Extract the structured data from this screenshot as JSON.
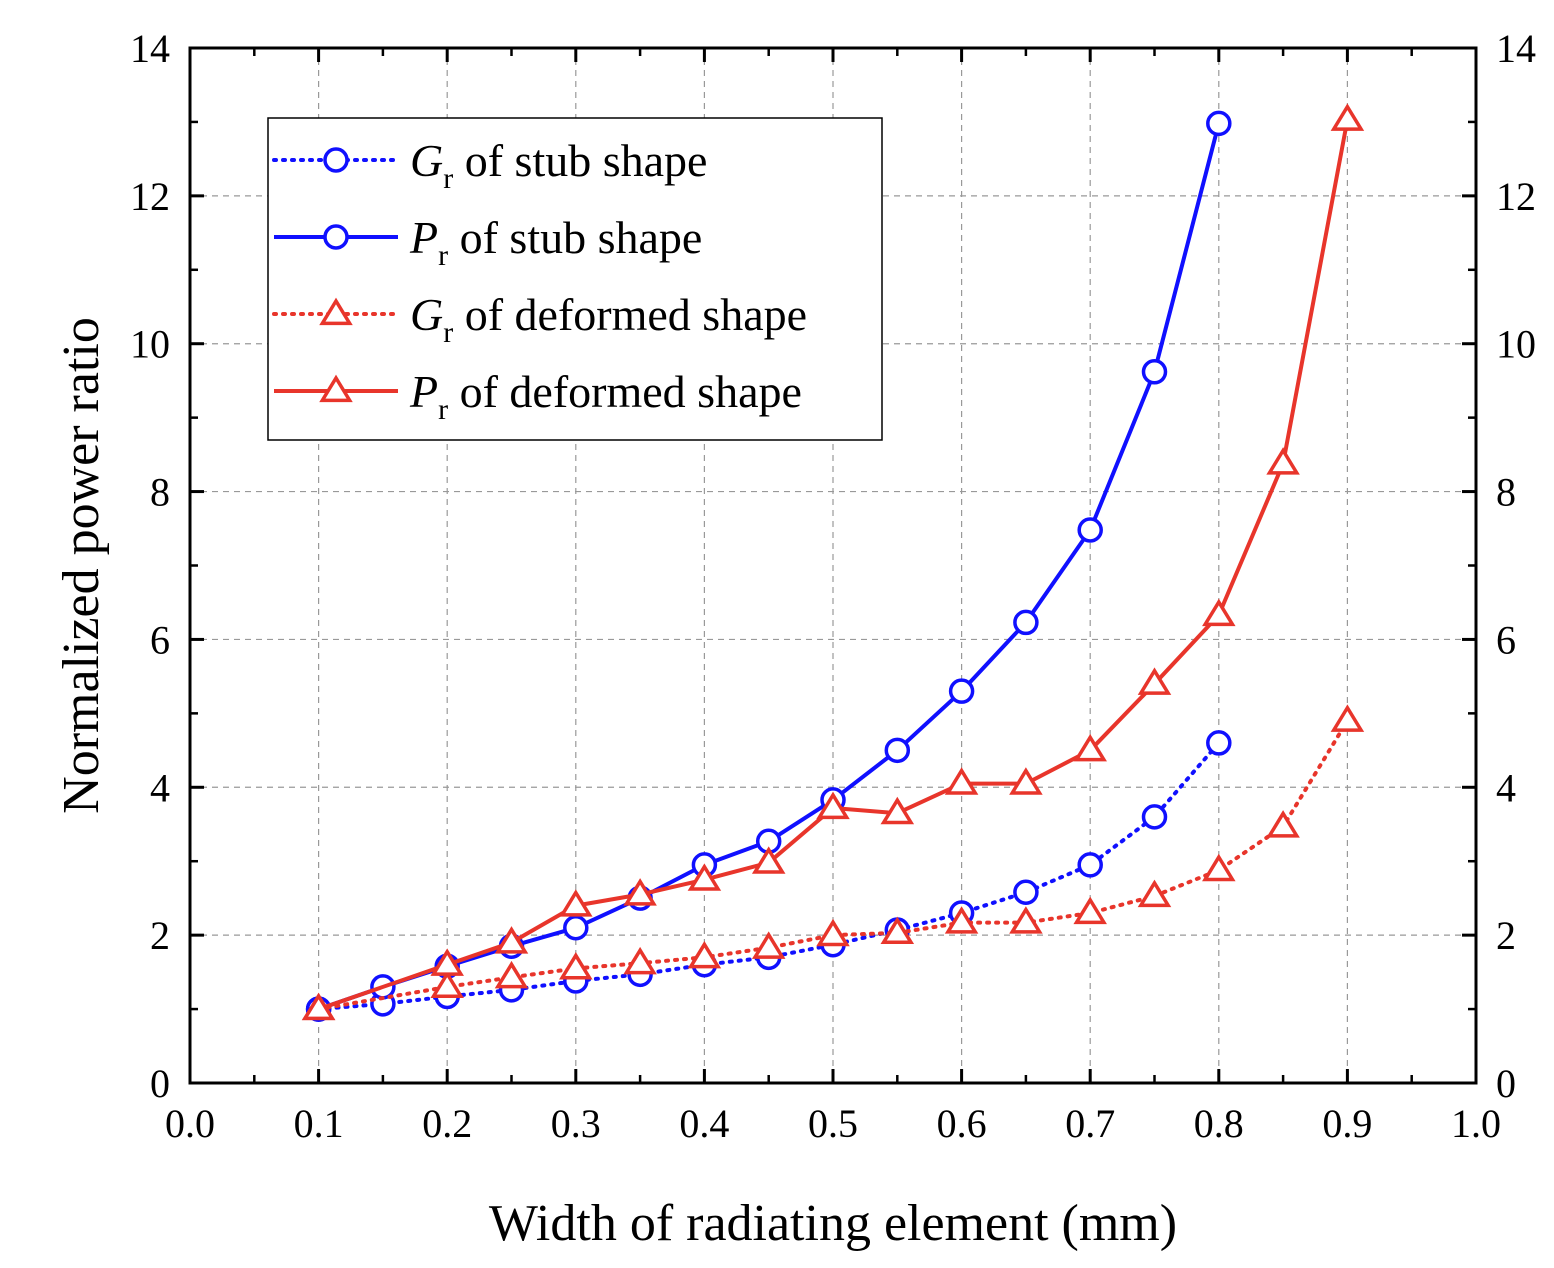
{
  "chart_data": {
    "type": "line",
    "xlabel": "Width of radiating element (mm)",
    "ylabel": "Normalized power ratio",
    "xlim": [
      0.0,
      1.0
    ],
    "ylim": [
      0,
      14
    ],
    "xticks": [
      "0.0",
      "0.1",
      "0.2",
      "0.3",
      "0.4",
      "0.5",
      "0.6",
      "0.7",
      "0.8",
      "0.9",
      "1.0"
    ],
    "yticks": [
      "0",
      "2",
      "4",
      "6",
      "8",
      "10",
      "12",
      "14"
    ],
    "right_yticks": [
      "0",
      "2",
      "4",
      "6",
      "8",
      "10",
      "12",
      "14"
    ],
    "grid": true,
    "legend_position": "top-left",
    "series": [
      {
        "name_main": "G",
        "name_sub": "r",
        "name_rest": " of stub shape",
        "color": "#1010ff",
        "line": "dotted",
        "marker": "circle",
        "x": [
          0.1,
          0.15,
          0.2,
          0.25,
          0.3,
          0.35,
          0.4,
          0.45,
          0.5,
          0.55,
          0.6,
          0.65,
          0.7,
          0.75,
          0.8
        ],
        "y": [
          1.0,
          1.07,
          1.17,
          1.26,
          1.38,
          1.47,
          1.6,
          1.7,
          1.87,
          2.07,
          2.3,
          2.58,
          2.95,
          3.6,
          4.6
        ]
      },
      {
        "name_main": "P",
        "name_sub": "r",
        "name_rest": " of stub shape",
        "color": "#1010ff",
        "line": "solid",
        "marker": "circle",
        "x": [
          0.1,
          0.15,
          0.2,
          0.25,
          0.3,
          0.35,
          0.4,
          0.45,
          0.5,
          0.55,
          0.6,
          0.65,
          0.7,
          0.75,
          0.8
        ],
        "y": [
          1.0,
          1.3,
          1.58,
          1.85,
          2.1,
          2.5,
          2.95,
          3.27,
          3.83,
          4.5,
          5.3,
          6.23,
          7.48,
          9.62,
          12.98
        ]
      },
      {
        "name_main": "G",
        "name_sub": "r",
        "name_rest": " of deformed shape",
        "color": "#e8352b",
        "line": "dotted",
        "marker": "triangle",
        "x": [
          0.1,
          0.2,
          0.25,
          0.3,
          0.35,
          0.4,
          0.45,
          0.5,
          0.55,
          0.6,
          0.65,
          0.7,
          0.75,
          0.8,
          0.85,
          0.9
        ],
        "y": [
          1.0,
          1.3,
          1.43,
          1.55,
          1.62,
          1.7,
          1.83,
          2.0,
          2.03,
          2.17,
          2.17,
          2.3,
          2.53,
          2.88,
          3.47,
          4.9
        ]
      },
      {
        "name_main": "P",
        "name_sub": "r",
        "name_rest": " of deformed shape",
        "color": "#e8352b",
        "line": "solid",
        "marker": "triangle",
        "x": [
          0.1,
          0.2,
          0.25,
          0.3,
          0.35,
          0.4,
          0.45,
          0.5,
          0.55,
          0.6,
          0.65,
          0.7,
          0.75,
          0.8,
          0.85,
          0.9
        ],
        "y": [
          1.0,
          1.6,
          1.9,
          2.4,
          2.55,
          2.75,
          2.98,
          3.72,
          3.65,
          4.05,
          4.05,
          4.5,
          5.4,
          6.33,
          8.38,
          13.03
        ]
      }
    ]
  }
}
